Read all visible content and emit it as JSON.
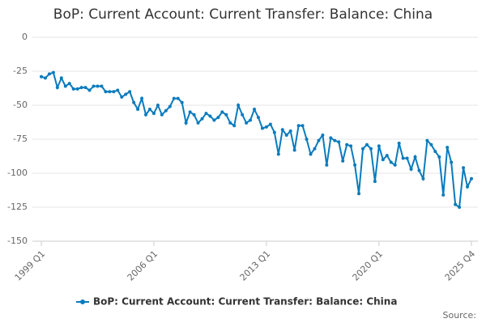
{
  "chart_data": {
    "type": "line",
    "title": "BoP: Current Account: Current Transfer: Balance: China",
    "source": "Source:",
    "categories": [
      "1999 Q1",
      null,
      null,
      null,
      null,
      null,
      null,
      null,
      null,
      null,
      null,
      null,
      null,
      null,
      null,
      null,
      null,
      null,
      null,
      null,
      null,
      null,
      null,
      null,
      null,
      null,
      null,
      null,
      "2006 Q1",
      null,
      null,
      null,
      null,
      null,
      null,
      null,
      null,
      null,
      null,
      null,
      null,
      null,
      null,
      null,
      null,
      null,
      null,
      null,
      null,
      null,
      null,
      null,
      null,
      null,
      null,
      null,
      "2013 Q1",
      null,
      null,
      null,
      null,
      null,
      null,
      null,
      null,
      null,
      null,
      null,
      null,
      null,
      null,
      null,
      null,
      null,
      null,
      null,
      null,
      null,
      null,
      null,
      null,
      null,
      null,
      null,
      "2020 Q1",
      null,
      null,
      null,
      null,
      null,
      null,
      null,
      null,
      null,
      null,
      null,
      null,
      null,
      null,
      null,
      null,
      null,
      null,
      null,
      null,
      null,
      null,
      "2025 Q4"
    ],
    "series": [
      {
        "name": "BoP: Current Account: Current Transfer: Balance: China",
        "color": "#0a7bbd",
        "values": [
          -29,
          -30,
          -27,
          -26,
          -37,
          -30,
          -36,
          -34,
          -38,
          -38,
          -37,
          -37,
          -39,
          -36,
          -36,
          -36,
          -40,
          -40,
          -40,
          -39,
          -44,
          -42,
          -40,
          -48,
          -53,
          -45,
          -57,
          -53,
          -56,
          -50,
          -57,
          -54,
          -51,
          -45,
          -45,
          -48,
          -63,
          -55,
          -57,
          -63,
          -60,
          -56,
          -58,
          -61,
          -59,
          -55,
          -57,
          -63,
          -65,
          -50,
          -57,
          -63,
          -61,
          -53,
          -59,
          -67,
          -66,
          -64,
          -70,
          -86,
          -68,
          -72,
          -69,
          -83,
          -65,
          -65,
          -75,
          -86,
          -82,
          -76,
          -72,
          -94,
          -74,
          -76,
          -77,
          -91,
          -79,
          -80,
          -94,
          -115,
          -82,
          -79,
          -82,
          -106,
          -80,
          -90,
          -87,
          -92,
          -94,
          -78,
          -89,
          -89,
          -97,
          -88,
          -98,
          -104,
          -76,
          -79,
          -84,
          -88,
          -116,
          -81,
          -92,
          -123,
          -125,
          -96,
          -110,
          -104
        ]
      }
    ],
    "ylim": [
      -150,
      0
    ],
    "yticks": [
      0,
      -25,
      -50,
      -75,
      -100,
      -125,
      -150
    ],
    "grid": true
  }
}
